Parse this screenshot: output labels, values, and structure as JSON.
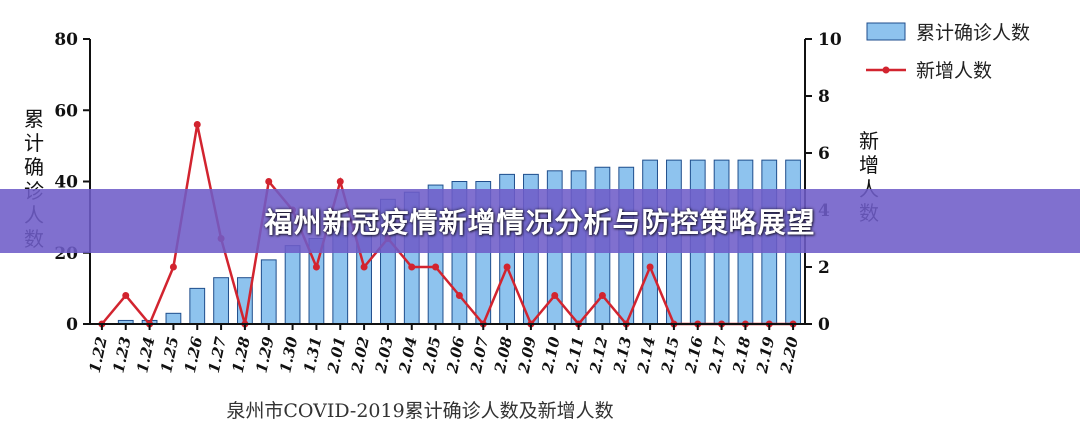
{
  "banner": {
    "title": "福州新冠疫情新增情况分析与防控策略展望"
  },
  "chart_data": {
    "type": "bar+line",
    "caption": "泉州市COVID-2019累计确诊人数及新增人数",
    "categories": [
      "1.22",
      "1.23",
      "1.24",
      "1.25",
      "1.26",
      "1.27",
      "1.28",
      "1.29",
      "1.30",
      "1.31",
      "2.01",
      "2.02",
      "2.03",
      "2.04",
      "2.05",
      "2.06",
      "2.07",
      "2.08",
      "2.09",
      "2.10",
      "2.11",
      "2.12",
      "2.13",
      "2.14",
      "2.15",
      "2.16",
      "2.17",
      "2.18",
      "2.19",
      "2.20"
    ],
    "series": [
      {
        "name": "累计确诊人数",
        "type": "bar",
        "axis": "left",
        "color": "#8ec3ee",
        "values": [
          0,
          1,
          1,
          3,
          10,
          13,
          13,
          18,
          22,
          24,
          27,
          32,
          35,
          37,
          39,
          40,
          40,
          42,
          42,
          43,
          43,
          44,
          44,
          46,
          46,
          46,
          46,
          46,
          46,
          46
        ]
      },
      {
        "name": "新增人数",
        "type": "line",
        "axis": "right",
        "color": "#d2242f",
        "values": [
          0,
          1,
          0,
          2,
          7,
          3,
          0,
          5,
          4,
          2,
          5,
          2,
          3,
          2,
          2,
          1,
          0,
          2,
          0,
          1,
          0,
          1,
          0,
          2,
          0,
          0,
          0,
          0,
          0,
          0
        ]
      }
    ],
    "y_left": {
      "label": "累计确诊人数",
      "ylim": [
        0,
        80
      ],
      "ticks": [
        "0",
        "20",
        "40",
        "60",
        "80"
      ]
    },
    "y_right": {
      "label": "新增人数",
      "ylim": [
        0,
        10
      ],
      "ticks": [
        "0",
        "2",
        "4",
        "6",
        "8",
        "10"
      ]
    },
    "legend": {
      "placement": "top-right",
      "items": [
        "累计确诊人数",
        "新增人数"
      ]
    },
    "grid": false
  }
}
